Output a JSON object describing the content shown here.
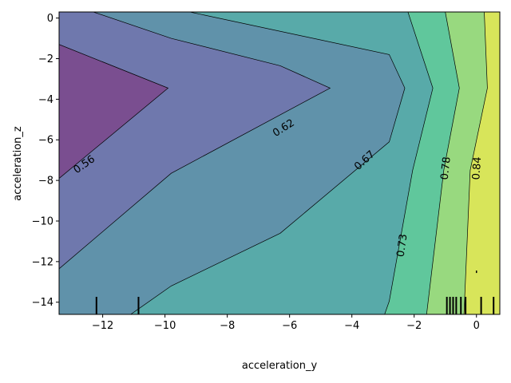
{
  "chart_data": {
    "type": "contour",
    "xlabel": "acceleration_y",
    "ylabel": "acceleration_z",
    "xlim": [
      -13.4,
      0.75
    ],
    "ylim": [
      -14.6,
      0.3
    ],
    "xticks": [
      -12,
      -10,
      -8,
      -6,
      -4,
      -2,
      0
    ],
    "yticks": [
      0,
      -2,
      -4,
      -6,
      -8,
      -10,
      -12,
      -14
    ],
    "xtick_labels": [
      "−12",
      "−10",
      "−8",
      "−6",
      "−4",
      "−2",
      "0"
    ],
    "ytick_labels": [
      "0",
      "−2",
      "−4",
      "−6",
      "−8",
      "−10",
      "−12",
      "−14"
    ],
    "levels": [
      0.56,
      0.62,
      0.67,
      0.73,
      0.78,
      0.84
    ],
    "level_labels": [
      "0.56",
      "0.62",
      "0.67",
      "0.73",
      "0.78",
      "0.84"
    ],
    "colormap": "viridis",
    "fill_colors": [
      "#7a4e90",
      "#6f78ad",
      "#6092aa",
      "#58aaa9",
      "#60c79c",
      "#98d97f",
      "#d8e55a"
    ],
    "contour_lines": [
      {
        "level": 0.56,
        "points": [
          [
            -13.4,
            -1.3
          ],
          [
            -9.9,
            -3.45
          ],
          [
            -13.4,
            -7.9
          ]
        ]
      },
      {
        "level": 0.62,
        "points": [
          [
            -12.3,
            0.3
          ],
          [
            -9.8,
            -1.0
          ],
          [
            -6.3,
            -2.35
          ],
          [
            -4.7,
            -3.45
          ],
          [
            -9.8,
            -7.65
          ],
          [
            -13.4,
            -12.35
          ]
        ]
      },
      {
        "level": 0.67,
        "points": [
          [
            -9.2,
            0.3
          ],
          [
            -2.8,
            -1.8
          ],
          [
            -2.3,
            -3.45
          ],
          [
            -2.8,
            -6.1
          ],
          [
            -6.3,
            -10.6
          ],
          [
            -9.8,
            -13.2
          ],
          [
            -11.1,
            -14.6
          ]
        ]
      },
      {
        "level": 0.73,
        "points": [
          [
            -2.2,
            0.3
          ],
          [
            -1.4,
            -3.45
          ],
          [
            -2.05,
            -7.5
          ],
          [
            -2.8,
            -13.95
          ],
          [
            -2.95,
            -14.6
          ]
        ]
      },
      {
        "level": 0.78,
        "points": [
          [
            -1.0,
            0.3
          ],
          [
            -0.55,
            -3.45
          ],
          [
            -1.05,
            -7.5
          ],
          [
            -1.6,
            -14.6
          ]
        ]
      },
      {
        "level": 0.84,
        "points": [
          [
            0.25,
            0.3
          ],
          [
            0.35,
            -3.45
          ],
          [
            -0.2,
            -7.5
          ],
          [
            -0.4,
            -14.6
          ]
        ]
      }
    ],
    "label_positions": [
      {
        "text": "0.56",
        "x": -12.6,
        "y": -7.2,
        "angle": -35
      },
      {
        "text": "0.62",
        "x": -6.2,
        "y": -5.4,
        "angle": -32
      },
      {
        "text": "0.67",
        "x": -3.6,
        "y": -7.0,
        "angle": -42
      },
      {
        "text": "0.73",
        "x": -2.4,
        "y": -11.2,
        "angle": -82
      },
      {
        "text": "0.78",
        "x": -1.0,
        "y": -7.4,
        "angle": -84
      },
      {
        "text": "0.84",
        "x": 0.0,
        "y": -7.4,
        "angle": -86
      }
    ],
    "rug_x": [
      -12.2,
      -10.85,
      -0.95,
      -0.85,
      -0.75,
      -0.65,
      -0.5,
      -0.35,
      0.15,
      0.55
    ],
    "extra_marks": [
      {
        "x": 0.0,
        "y": -12.5
      }
    ]
  }
}
